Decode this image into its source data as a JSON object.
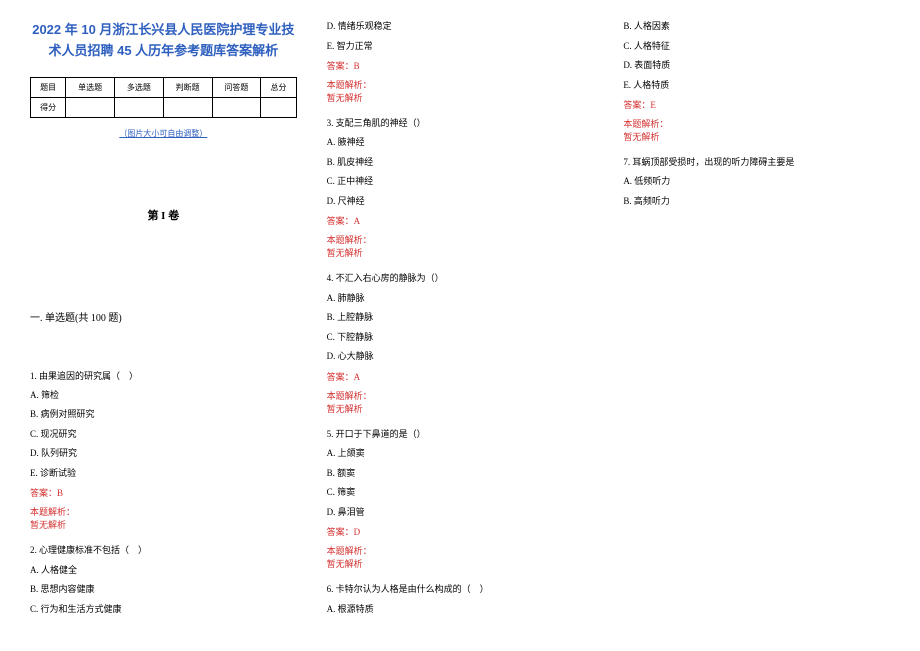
{
  "document": {
    "title": "2022 年 10 月浙江长兴县人民医院护理专业技术人员招聘 45 人历年参考题库答案解析",
    "title_color": "#2e5fbf",
    "score_table": {
      "header": [
        "题目",
        "单选题",
        "多选题",
        "判断题",
        "问答题",
        "总分"
      ],
      "row_label": "得分"
    },
    "hint": "（图片大小可自由调整）",
    "volume_label": "第 I 卷",
    "section_label": "一. 单选题(共 100 题)",
    "questions": [
      {
        "num": "1.",
        "stem": "由果追因的研究属（　）",
        "options": [
          "A. 筛检",
          "B. 病例对照研究",
          "C. 现况研究",
          "D. 队列研究",
          "E. 诊断试验"
        ],
        "answer": "答案：B",
        "analysis_label": "本题解析：",
        "analysis_text": "暂无解析"
      },
      {
        "num": "2.",
        "stem": "心理健康标准不包括（　）",
        "options": [
          "A. 人格健全",
          "B. 思想内容健康",
          "C. 行为和生活方式健康",
          "D. 情绪乐观稳定",
          "E. 智力正常"
        ],
        "answer": "答案：B",
        "analysis_label": "本题解析：",
        "analysis_text": "暂无解析"
      },
      {
        "num": "3.",
        "stem": "支配三角肌的神经（）",
        "options": [
          "A. 腋神经",
          "B. 肌皮神经",
          "C. 正中神经",
          "D. 尺神经"
        ],
        "answer": "答案：A",
        "analysis_label": "本题解析：",
        "analysis_text": "暂无解析"
      },
      {
        "num": "4.",
        "stem": "不汇入右心房的静脉为（）",
        "options": [
          "A. 肺静脉",
          "B. 上腔静脉",
          "C. 下腔静脉",
          "D. 心大静脉"
        ],
        "answer": "答案：A",
        "analysis_label": "本题解析：",
        "analysis_text": "暂无解析"
      },
      {
        "num": "5.",
        "stem": "开口于下鼻道的是（）",
        "options": [
          "A. 上颌窦",
          "B. 额窦",
          "C. 筛窦",
          "D. 鼻泪管"
        ],
        "answer": "答案：D",
        "analysis_label": "本题解析：",
        "analysis_text": "暂无解析"
      },
      {
        "num": "6.",
        "stem": "卡特尔认为人格是由什么构成的（　）",
        "options": [
          "A. 根源特质",
          "B. 人格因素",
          "C. 人格特征",
          "D. 表面特质",
          "E. 人格特质"
        ],
        "answer": "答案：E",
        "analysis_label": "本题解析：",
        "analysis_text": "暂无解析"
      },
      {
        "num": "7.",
        "stem": "耳蜗顶部受损时，出现的听力障碍主要是",
        "options": [
          "A. 低频听力",
          "B. 高频听力"
        ],
        "answer": "",
        "analysis_label": "",
        "analysis_text": ""
      }
    ]
  }
}
